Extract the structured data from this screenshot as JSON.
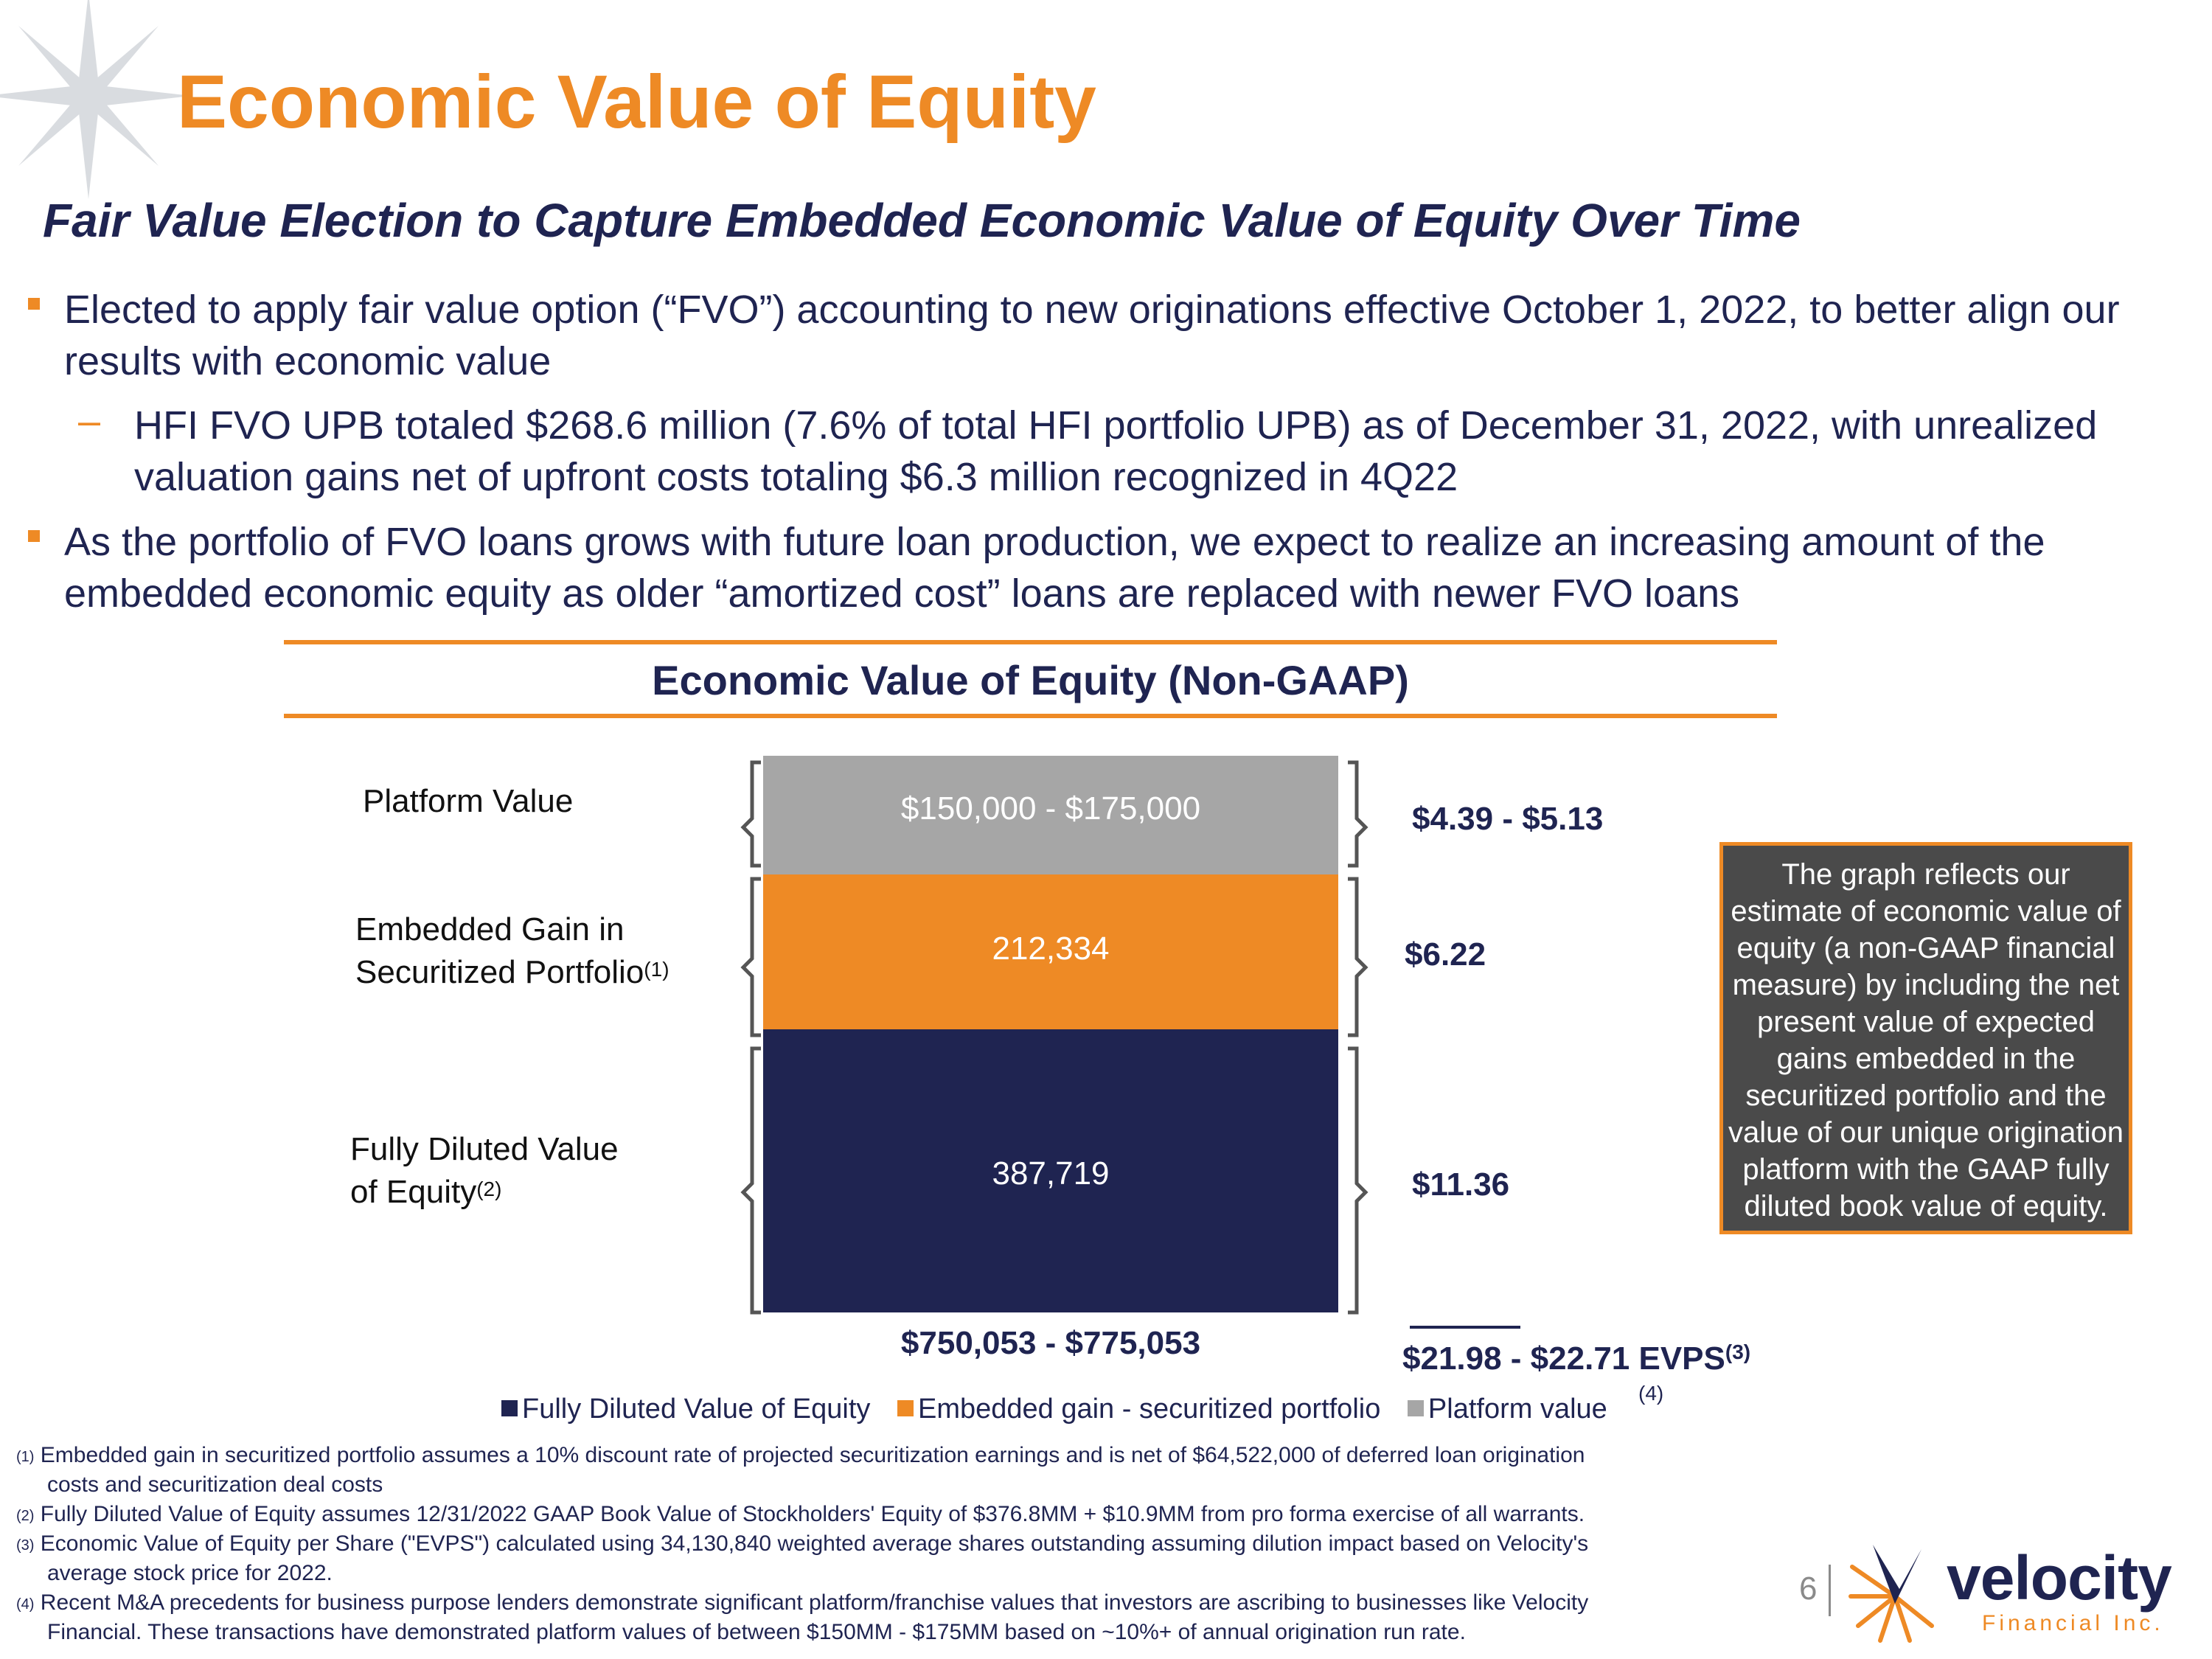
{
  "header": {
    "title": "Economic Value of Equity",
    "subtitle": "Fair Value Election to Capture Embedded Economic Value of Equity Over Time"
  },
  "bullets": [
    "Elected to apply fair value option (“FVO”) accounting to new originations effective October 1, 2022, to better align our results with economic value",
    "HFI FVO UPB totaled $268.6 million (7.6% of total HFI portfolio UPB) as of December 31, 2022, with unrealized valuation gains net of upfront costs totaling $6.3 million recognized in 4Q22",
    "As the portfolio of FVO loans grows with future loan production, we expect to realize an increasing amount of the embedded economic equity as older “amortized cost” loans are replaced with newer FVO loans"
  ],
  "chart_data": {
    "type": "bar",
    "stacked": true,
    "title": "Economic Value of Equity (Non-GAAP)",
    "series": [
      {
        "name": "Fully Diluted Value of Equity",
        "value": 387719,
        "label": "387,719",
        "color": "#1f2451"
      },
      {
        "name": "Embedded gain - securitized portfolio",
        "value": 212334,
        "label": "212,334",
        "color": "#ee8a25"
      },
      {
        "name": "Platform value",
        "value": 162500,
        "label": "$150,000 - $175,000",
        "color": "#a6a6a6"
      }
    ],
    "segment_labels": {
      "platform": "Platform Value",
      "embedded_line1": "Embedded Gain in",
      "embedded_line2": "Securitized Portfolio",
      "embedded_sup": "(1)",
      "equity_line1": "Fully Diluted Value",
      "equity_line2": "of Equity",
      "equity_sup": "(2)"
    },
    "per_share": {
      "platform": "$4.39 - $5.13",
      "embedded": "$6.22",
      "equity": "$11.36"
    },
    "total": "$750,053 - $775,053",
    "evps": "$21.98 - $22.71 EVPS",
    "evps_sup": "(3)",
    "evps_note": "(4)",
    "legend_position": "bottom"
  },
  "callout": "The graph reflects our estimate of economic value of equity (a non-GAAP financial measure) by including the net present value of expected gains embedded in the securitized portfolio and the value of our unique origination platform with the GAAP fully diluted book value of equity.",
  "footnotes": [
    {
      "num": "(1)",
      "line1": "Embedded gain in securitized portfolio assumes a 10% discount rate of projected securitization earnings and is net of $64,522,000 of deferred loan origination",
      "line2": "costs and securitization deal costs"
    },
    {
      "num": "(2)",
      "line1": "Fully Diluted Value of Equity assumes 12/31/2022 GAAP Book Value of Stockholders' Equity of $376.8MM + $10.9MM from pro forma exercise of all warrants.",
      "line2": ""
    },
    {
      "num": "(3)",
      "line1": "Economic Value of Equity per Share (\"EVPS\") calculated using 34,130,840 weighted average shares outstanding assuming dilution impact based on Velocity's",
      "line2": "average stock price for 2022."
    },
    {
      "num": "(4)",
      "line1": "Recent M&A precedents for business purpose lenders demonstrate significant platform/franchise values that investors are ascribing to businesses like Velocity",
      "line2": "Financial. These transactions have demonstrated platform values of between $150MM - $175MM based on ~10%+ of annual origination run rate."
    }
  ],
  "footer": {
    "page_number": "6",
    "logo_word": "velocity",
    "logo_sub": "Financial Inc."
  },
  "colors": {
    "accent": "#ee8a25",
    "navy": "#1f2451",
    "gray": "#a6a6a6",
    "callout_bg": "#4a4a4a"
  }
}
